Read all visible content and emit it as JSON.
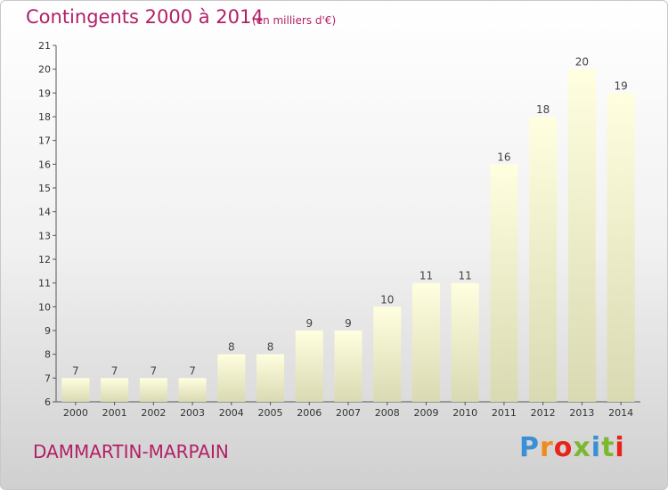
{
  "header": {
    "title": "Contingents 2000 à 2014",
    "subtitle": "(en milliers d'€)"
  },
  "footer": {
    "commune": "DAMMARTIN-MARPAIN",
    "brand": "Proxiti",
    "brand_colors": [
      "#3a8fd6",
      "#f08a1c",
      "#e8231b",
      "#7cb82f",
      "#3a8fd6",
      "#7cb82f",
      "#e8231b"
    ]
  },
  "colors": {
    "title": "#b21f66",
    "bar_top": "#ffffe0",
    "bar_bottom": "#d9d9b2",
    "axis": "#555555",
    "grid": "#bbbbbb"
  },
  "chart_data": {
    "type": "bar",
    "categories": [
      "2000",
      "2001",
      "2002",
      "2003",
      "2004",
      "2005",
      "2006",
      "2007",
      "2008",
      "2009",
      "2010",
      "2011",
      "2012",
      "2013",
      "2014"
    ],
    "values": [
      7,
      7,
      7,
      7,
      8,
      8,
      9,
      9,
      10,
      11,
      11,
      16,
      18,
      20,
      19
    ],
    "title": "Contingents 2000 à 2014",
    "xlabel": "",
    "ylabel": "",
    "ylim": [
      6,
      21
    ],
    "yticks": [
      6,
      7,
      8,
      9,
      10,
      11,
      12,
      13,
      14,
      15,
      16,
      17,
      18,
      19,
      20,
      21
    ],
    "grid": false,
    "legend": "none"
  }
}
